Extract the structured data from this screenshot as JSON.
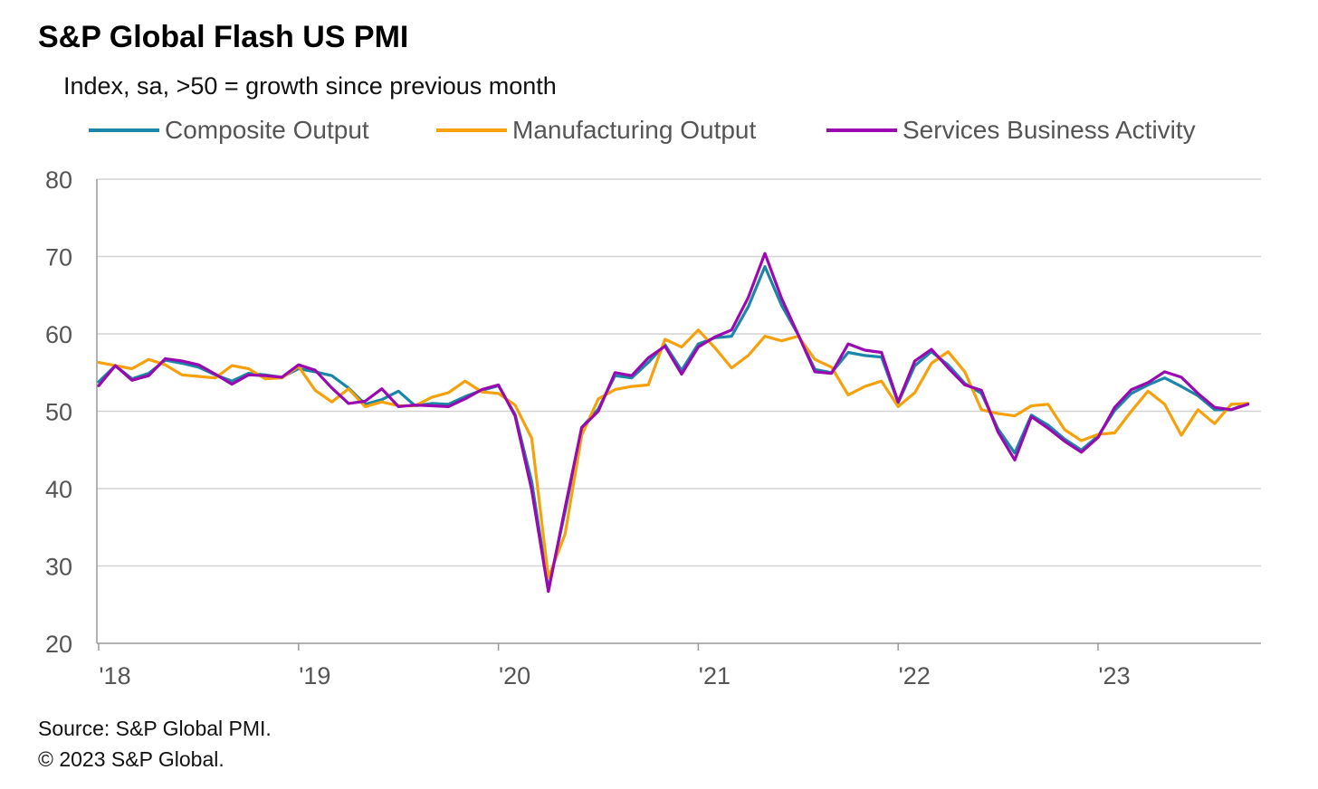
{
  "header": {
    "title": "S&P Global Flash US PMI",
    "subtitle": "Index, sa, >50 = growth  since previous  month"
  },
  "footer": {
    "source": "Source: S&P Global PMI.",
    "copyright": "© 2023 S&P Global."
  },
  "colors": {
    "composite": "#1a86a8",
    "manufacturing": "#f5a10c",
    "services": "#9a08b0",
    "grid": "#d3d3d3",
    "axis": "#999999",
    "ticklabel": "#555555"
  },
  "chart_data": {
    "type": "line",
    "title": "S&P Global Flash US PMI",
    "subtitle": "Index, sa, >50 = growth  since previous  month",
    "xlabel": "",
    "ylabel": "",
    "ylim": [
      20,
      80
    ],
    "yticks": [
      20,
      30,
      40,
      50,
      60,
      70,
      80
    ],
    "xlim": [
      "2018-01",
      "2023-10"
    ],
    "xticks": [
      {
        "date": "2018-01",
        "label": "'18"
      },
      {
        "date": "2019-01",
        "label": "'19"
      },
      {
        "date": "2020-01",
        "label": "'20"
      },
      {
        "date": "2021-01",
        "label": "'21"
      },
      {
        "date": "2022-01",
        "label": "'22"
      },
      {
        "date": "2023-01",
        "label": "'23"
      }
    ],
    "grid": true,
    "legend_position": "top",
    "start_month": "2018-01",
    "series": [
      {
        "name": "Composite Output",
        "color": "#1a86a8",
        "values": [
          53.8,
          55.9,
          54.2,
          54.9,
          56.6,
          56.2,
          55.7,
          54.7,
          53.9,
          54.9,
          54.7,
          54.4,
          55.5,
          55.1,
          54.6,
          53.0,
          50.9,
          51.5,
          52.6,
          50.7,
          51.0,
          50.9,
          51.9,
          52.7,
          53.3,
          49.6,
          40.9,
          27.0,
          37.0,
          47.9,
          50.3,
          54.6,
          54.3,
          56.3,
          58.6,
          55.3,
          58.7,
          59.5,
          59.7,
          63.5,
          68.7,
          63.7,
          59.9,
          55.4,
          55.0,
          57.6,
          57.2,
          57.0,
          51.1,
          55.9,
          57.7,
          56.0,
          53.6,
          52.3,
          47.7,
          44.6,
          49.5,
          48.2,
          46.4,
          45.0,
          46.8,
          50.1,
          52.3,
          53.4,
          54.3,
          53.2,
          52.0,
          50.2,
          50.2,
          51.0
        ]
      },
      {
        "name": "Manufacturing Output",
        "color": "#f5a10c",
        "values": [
          56.3,
          55.9,
          55.5,
          56.7,
          56.0,
          54.7,
          54.5,
          54.3,
          55.9,
          55.5,
          54.2,
          54.3,
          55.8,
          52.7,
          51.2,
          52.9,
          50.6,
          51.2,
          50.7,
          50.7,
          51.8,
          52.4,
          53.9,
          52.5,
          52.3,
          50.8,
          46.5,
          28.5,
          34.1,
          46.9,
          51.6,
          52.8,
          53.2,
          53.4,
          59.3,
          58.3,
          60.5,
          58.2,
          55.6,
          57.2,
          59.7,
          59.1,
          59.7,
          56.7,
          55.7,
          52.1,
          53.2,
          53.9,
          50.6,
          52.4,
          56.2,
          57.7,
          55.1,
          50.2,
          49.7,
          49.4,
          50.7,
          50.9,
          47.6,
          46.2,
          47.0,
          47.2,
          50.0,
          52.6,
          50.9,
          46.9,
          50.2,
          48.4,
          50.9,
          51.0
        ]
      },
      {
        "name": "Services Business Activity",
        "color": "#9a08b0",
        "values": [
          53.3,
          55.9,
          54.0,
          54.6,
          56.8,
          56.5,
          56.0,
          54.8,
          53.5,
          54.7,
          54.6,
          54.4,
          56.0,
          55.3,
          53.0,
          51.0,
          51.3,
          52.9,
          50.6,
          50.8,
          50.7,
          50.6,
          51.6,
          52.8,
          53.4,
          49.4,
          39.8,
          26.7,
          37.5,
          47.9,
          50.0,
          55.0,
          54.6,
          56.9,
          58.4,
          54.8,
          58.3,
          59.6,
          60.5,
          64.7,
          70.4,
          64.6,
          59.9,
          55.1,
          54.9,
          58.7,
          57.9,
          57.6,
          51.2,
          56.5,
          58.0,
          55.6,
          53.4,
          52.7,
          47.3,
          43.7,
          49.3,
          47.8,
          46.1,
          44.7,
          46.6,
          50.5,
          52.8,
          53.7,
          55.1,
          54.4,
          52.3,
          50.5,
          50.2,
          50.9
        ]
      }
    ]
  }
}
